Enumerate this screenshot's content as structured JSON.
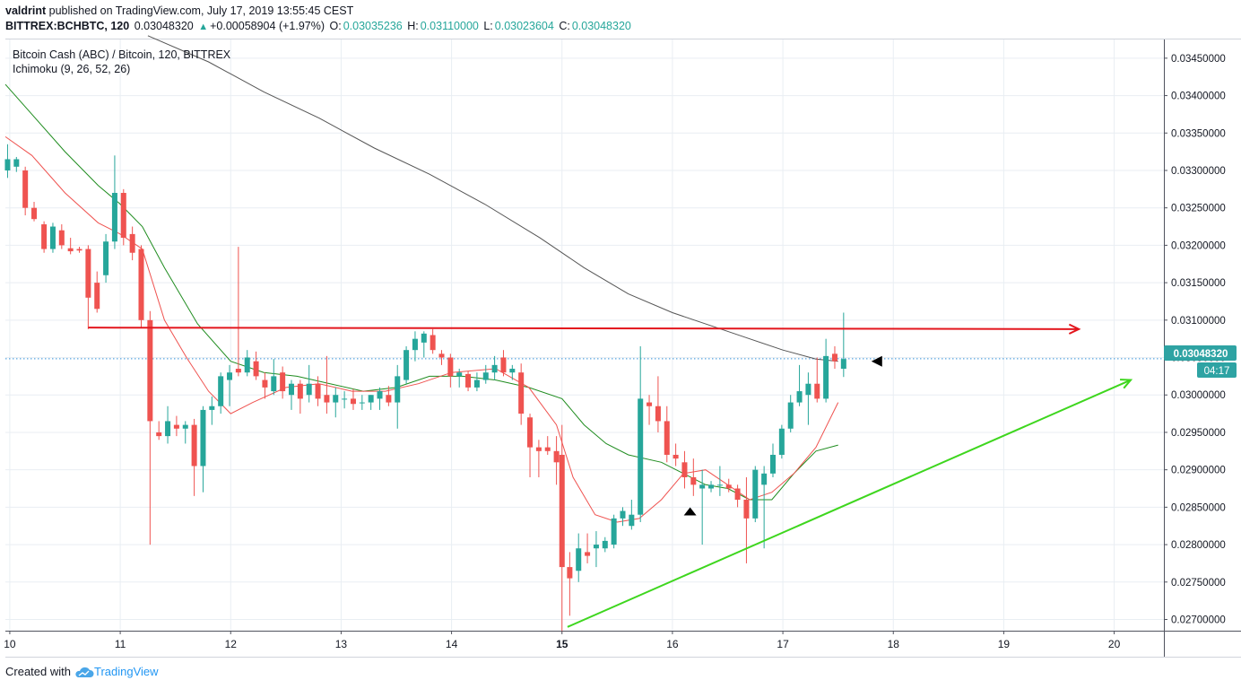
{
  "header": {
    "author": "valdrint",
    "published_text": "published on TradingView.com, July 17, 2019 13:55:45 CEST",
    "symbol": "BITTREX:BCHBTC, 120",
    "last": "0.03048320",
    "change": "+0.00058904 (+1.97%)",
    "o_label": "O:",
    "o_value": "0.03035236",
    "h_label": "H:",
    "h_value": "0.03110000",
    "l_label": "L:",
    "l_value": "0.03023604",
    "c_label": "C:",
    "c_value": "0.03048320"
  },
  "legend": {
    "title": "Bitcoin Cash (ABC) / Bitcoin, 120, BITTREX",
    "indicator": "Ichimoku (9, 26, 52, 26)"
  },
  "footer": {
    "created_with": "Created with",
    "brand": "TradingView"
  },
  "price_label": "0.03048320",
  "time_label": "04:17",
  "colors": {
    "up": "#26a69a",
    "down": "#ef5350",
    "support": "#3ed61e",
    "resistance": "#e3161d",
    "grid": "#e9eef3",
    "price_line": "#2f8fd8"
  },
  "chart_data": {
    "type": "candlestick",
    "x_ticks": [
      "10",
      "11",
      "12",
      "13",
      "14",
      "15",
      "16",
      "17",
      "18",
      "19",
      "20"
    ],
    "y_ticks": [
      "0.02700000",
      "0.02750000",
      "0.02800000",
      "0.02850000",
      "0.02900000",
      "0.02950000",
      "0.03000000",
      "0.03050000",
      "0.03100000",
      "0.03150000",
      "0.03200000",
      "0.03250000",
      "0.03300000",
      "0.03350000",
      "0.03400000",
      "0.03450000"
    ],
    "ylim": [
      0.02685,
      0.03475
    ],
    "xlim": [
      9.96,
      20.45
    ],
    "candles": [
      {
        "t": 9.98,
        "o": 0.033,
        "h": 0.03335,
        "l": 0.0329,
        "c": 0.03315
      },
      {
        "t": 10.06,
        "o": 0.03305,
        "h": 0.03318,
        "l": 0.03298,
        "c": 0.03315
      },
      {
        "t": 10.14,
        "o": 0.033,
        "h": 0.03305,
        "l": 0.0324,
        "c": 0.0325
      },
      {
        "t": 10.22,
        "o": 0.0325,
        "h": 0.03258,
        "l": 0.03232,
        "c": 0.03235
      },
      {
        "t": 10.31,
        "o": 0.03228,
        "h": 0.03232,
        "l": 0.0319,
        "c": 0.03195
      },
      {
        "t": 10.39,
        "o": 0.03195,
        "h": 0.0323,
        "l": 0.0319,
        "c": 0.03225
      },
      {
        "t": 10.47,
        "o": 0.0322,
        "h": 0.03228,
        "l": 0.03195,
        "c": 0.032
      },
      {
        "t": 10.55,
        "o": 0.03196,
        "h": 0.0321,
        "l": 0.03188,
        "c": 0.03192
      },
      {
        "t": 10.63,
        "o": 0.03195,
        "h": 0.03198,
        "l": 0.0319,
        "c": 0.03193
      },
      {
        "t": 10.71,
        "o": 0.03195,
        "h": 0.032,
        "l": 0.03088,
        "c": 0.0313
      },
      {
        "t": 10.79,
        "o": 0.0315,
        "h": 0.03165,
        "l": 0.0311,
        "c": 0.03115
      },
      {
        "t": 10.87,
        "o": 0.0316,
        "h": 0.03215,
        "l": 0.0315,
        "c": 0.03205
      },
      {
        "t": 10.95,
        "o": 0.03205,
        "h": 0.0332,
        "l": 0.03195,
        "c": 0.0327
      },
      {
        "t": 11.03,
        "o": 0.0327,
        "h": 0.03275,
        "l": 0.032,
        "c": 0.0321
      },
      {
        "t": 11.11,
        "o": 0.03215,
        "h": 0.03225,
        "l": 0.0318,
        "c": 0.0319
      },
      {
        "t": 11.19,
        "o": 0.03195,
        "h": 0.032,
        "l": 0.0309,
        "c": 0.031
      },
      {
        "t": 11.27,
        "o": 0.031,
        "h": 0.03112,
        "l": 0.028,
        "c": 0.02965
      },
      {
        "t": 11.35,
        "o": 0.0295,
        "h": 0.02965,
        "l": 0.0294,
        "c": 0.02945
      },
      {
        "t": 11.43,
        "o": 0.02945,
        "h": 0.02985,
        "l": 0.02935,
        "c": 0.02965
      },
      {
        "t": 11.51,
        "o": 0.0296,
        "h": 0.02972,
        "l": 0.02945,
        "c": 0.02955
      },
      {
        "t": 11.59,
        "o": 0.02955,
        "h": 0.02965,
        "l": 0.02935,
        "c": 0.0296
      },
      {
        "t": 11.67,
        "o": 0.0296,
        "h": 0.02968,
        "l": 0.02865,
        "c": 0.02905
      },
      {
        "t": 11.75,
        "o": 0.02905,
        "h": 0.02985,
        "l": 0.0287,
        "c": 0.0298
      },
      {
        "t": 11.83,
        "o": 0.0298,
        "h": 0.02998,
        "l": 0.0296,
        "c": 0.02985
      },
      {
        "t": 11.91,
        "o": 0.02985,
        "h": 0.0303,
        "l": 0.02975,
        "c": 0.03025
      },
      {
        "t": 11.99,
        "o": 0.0302,
        "h": 0.0304,
        "l": 0.02985,
        "c": 0.0303
      },
      {
        "t": 12.07,
        "o": 0.03035,
        "h": 0.03198,
        "l": 0.03025,
        "c": 0.0303
      },
      {
        "t": 12.15,
        "o": 0.0303,
        "h": 0.0306,
        "l": 0.03025,
        "c": 0.0305
      },
      {
        "t": 12.23,
        "o": 0.03045,
        "h": 0.03058,
        "l": 0.0302,
        "c": 0.03025
      },
      {
        "t": 12.31,
        "o": 0.0302,
        "h": 0.0303,
        "l": 0.02995,
        "c": 0.0301
      },
      {
        "t": 12.39,
        "o": 0.03005,
        "h": 0.03048,
        "l": 0.03,
        "c": 0.03025
      },
      {
        "t": 12.47,
        "o": 0.0303,
        "h": 0.03038,
        "l": 0.02995,
        "c": 0.03005
      },
      {
        "t": 12.55,
        "o": 0.03,
        "h": 0.0302,
        "l": 0.0298,
        "c": 0.03015
      },
      {
        "t": 12.63,
        "o": 0.03015,
        "h": 0.0302,
        "l": 0.02975,
        "c": 0.02995
      },
      {
        "t": 12.71,
        "o": 0.03,
        "h": 0.0304,
        "l": 0.0299,
        "c": 0.03015
      },
      {
        "t": 12.79,
        "o": 0.03015,
        "h": 0.03025,
        "l": 0.02985,
        "c": 0.02995
      },
      {
        "t": 12.87,
        "o": 0.03,
        "h": 0.03052,
        "l": 0.02975,
        "c": 0.0299
      },
      {
        "t": 12.95,
        "o": 0.0299,
        "h": 0.0301,
        "l": 0.0297,
        "c": 0.03
      },
      {
        "t": 13.03,
        "o": 0.02995,
        "h": 0.03005,
        "l": 0.02982,
        "c": 0.02995
      },
      {
        "t": 13.11,
        "o": 0.02995,
        "h": 0.03008,
        "l": 0.0298,
        "c": 0.02988
      },
      {
        "t": 13.19,
        "o": 0.0299,
        "h": 0.03,
        "l": 0.0298,
        "c": 0.0299
      },
      {
        "t": 13.27,
        "o": 0.0299,
        "h": 0.03,
        "l": 0.0298,
        "c": 0.03
      },
      {
        "t": 13.35,
        "o": 0.02995,
        "h": 0.0301,
        "l": 0.0298,
        "c": 0.03005
      },
      {
        "t": 13.43,
        "o": 0.03,
        "h": 0.03012,
        "l": 0.02985,
        "c": 0.0299
      },
      {
        "t": 13.51,
        "o": 0.0299,
        "h": 0.0304,
        "l": 0.02955,
        "c": 0.03025
      },
      {
        "t": 13.59,
        "o": 0.0302,
        "h": 0.03065,
        "l": 0.03015,
        "c": 0.0306
      },
      {
        "t": 13.67,
        "o": 0.0306,
        "h": 0.03085,
        "l": 0.03045,
        "c": 0.03075
      },
      {
        "t": 13.75,
        "o": 0.0307,
        "h": 0.03085,
        "l": 0.0305,
        "c": 0.03082
      },
      {
        "t": 13.83,
        "o": 0.0308,
        "h": 0.03088,
        "l": 0.03055,
        "c": 0.0306
      },
      {
        "t": 13.91,
        "o": 0.03055,
        "h": 0.0306,
        "l": 0.0304,
        "c": 0.0305
      },
      {
        "t": 13.99,
        "o": 0.0305,
        "h": 0.03055,
        "l": 0.0301,
        "c": 0.03025
      },
      {
        "t": 14.07,
        "o": 0.03025,
        "h": 0.03035,
        "l": 0.0301,
        "c": 0.0303
      },
      {
        "t": 14.15,
        "o": 0.03028,
        "h": 0.03032,
        "l": 0.03005,
        "c": 0.0301
      },
      {
        "t": 14.23,
        "o": 0.0301,
        "h": 0.0303,
        "l": 0.03005,
        "c": 0.0302
      },
      {
        "t": 14.31,
        "o": 0.0302,
        "h": 0.0304,
        "l": 0.03015,
        "c": 0.0303
      },
      {
        "t": 14.39,
        "o": 0.0303,
        "h": 0.03052,
        "l": 0.0302,
        "c": 0.0304
      },
      {
        "t": 14.47,
        "o": 0.0305,
        "h": 0.0306,
        "l": 0.03025,
        "c": 0.0303
      },
      {
        "t": 14.55,
        "o": 0.0303,
        "h": 0.0304,
        "l": 0.0302,
        "c": 0.03035
      },
      {
        "t": 14.63,
        "o": 0.0303,
        "h": 0.03042,
        "l": 0.0296,
        "c": 0.02975
      },
      {
        "t": 14.71,
        "o": 0.0297,
        "h": 0.02975,
        "l": 0.0289,
        "c": 0.0293
      },
      {
        "t": 14.79,
        "o": 0.0293,
        "h": 0.0294,
        "l": 0.0289,
        "c": 0.02925
      },
      {
        "t": 14.87,
        "o": 0.0293,
        "h": 0.02945,
        "l": 0.0292,
        "c": 0.02925
      },
      {
        "t": 14.95,
        "o": 0.02925,
        "h": 0.02945,
        "l": 0.0288,
        "c": 0.0291
      },
      {
        "t": 15.0,
        "o": 0.0292,
        "h": 0.0296,
        "l": 0.02683,
        "c": 0.0277
      },
      {
        "t": 15.07,
        "o": 0.0277,
        "h": 0.0279,
        "l": 0.02705,
        "c": 0.02755
      },
      {
        "t": 15.15,
        "o": 0.02765,
        "h": 0.02815,
        "l": 0.0275,
        "c": 0.02795
      },
      {
        "t": 15.23,
        "o": 0.0279,
        "h": 0.02815,
        "l": 0.02775,
        "c": 0.02785
      },
      {
        "t": 15.31,
        "o": 0.02795,
        "h": 0.02818,
        "l": 0.0277,
        "c": 0.028
      },
      {
        "t": 15.39,
        "o": 0.02795,
        "h": 0.0281,
        "l": 0.0279,
        "c": 0.02805
      },
      {
        "t": 15.47,
        "o": 0.028,
        "h": 0.0284,
        "l": 0.02795,
        "c": 0.02835
      },
      {
        "t": 15.55,
        "o": 0.02835,
        "h": 0.0285,
        "l": 0.02825,
        "c": 0.02845
      },
      {
        "t": 15.63,
        "o": 0.02825,
        "h": 0.0286,
        "l": 0.0282,
        "c": 0.0284
      },
      {
        "t": 15.71,
        "o": 0.0284,
        "h": 0.03065,
        "l": 0.0283,
        "c": 0.02995
      },
      {
        "t": 15.79,
        "o": 0.0299,
        "h": 0.03,
        "l": 0.0296,
        "c": 0.02985
      },
      {
        "t": 15.87,
        "o": 0.02985,
        "h": 0.03025,
        "l": 0.0295,
        "c": 0.02965
      },
      {
        "t": 15.95,
        "o": 0.02965,
        "h": 0.02985,
        "l": 0.0291,
        "c": 0.0292
      },
      {
        "t": 16.03,
        "o": 0.0292,
        "h": 0.02935,
        "l": 0.02905,
        "c": 0.02915
      },
      {
        "t": 16.11,
        "o": 0.0291,
        "h": 0.02925,
        "l": 0.02875,
        "c": 0.0289
      },
      {
        "t": 16.19,
        "o": 0.0289,
        "h": 0.02915,
        "l": 0.02865,
        "c": 0.0288
      },
      {
        "t": 16.27,
        "o": 0.02875,
        "h": 0.029,
        "l": 0.028,
        "c": 0.0288
      },
      {
        "t": 16.35,
        "o": 0.02875,
        "h": 0.02885,
        "l": 0.0287,
        "c": 0.0288
      },
      {
        "t": 16.43,
        "o": 0.0288,
        "h": 0.02905,
        "l": 0.02865,
        "c": 0.0288
      },
      {
        "t": 16.51,
        "o": 0.0288,
        "h": 0.02888,
        "l": 0.0287,
        "c": 0.02875
      },
      {
        "t": 16.59,
        "o": 0.02875,
        "h": 0.0288,
        "l": 0.0285,
        "c": 0.0286
      },
      {
        "t": 16.67,
        "o": 0.0286,
        "h": 0.0289,
        "l": 0.02775,
        "c": 0.02835
      },
      {
        "t": 16.75,
        "o": 0.02835,
        "h": 0.02905,
        "l": 0.0283,
        "c": 0.029
      },
      {
        "t": 16.83,
        "o": 0.0288,
        "h": 0.02905,
        "l": 0.02795,
        "c": 0.02895
      },
      {
        "t": 16.91,
        "o": 0.02895,
        "h": 0.02935,
        "l": 0.0289,
        "c": 0.0292
      },
      {
        "t": 16.99,
        "o": 0.0292,
        "h": 0.0296,
        "l": 0.02915,
        "c": 0.02955
      },
      {
        "t": 17.07,
        "o": 0.02955,
        "h": 0.03,
        "l": 0.0295,
        "c": 0.0299
      },
      {
        "t": 17.15,
        "o": 0.0299,
        "h": 0.0304,
        "l": 0.02985,
        "c": 0.03005
      },
      {
        "t": 17.23,
        "o": 0.03,
        "h": 0.0303,
        "l": 0.0296,
        "c": 0.03015
      },
      {
        "t": 17.31,
        "o": 0.03015,
        "h": 0.0305,
        "l": 0.0299,
        "c": 0.02995
      },
      {
        "t": 17.39,
        "o": 0.02995,
        "h": 0.03075,
        "l": 0.0299,
        "c": 0.03052
      },
      {
        "t": 17.47,
        "o": 0.03055,
        "h": 0.03065,
        "l": 0.03035,
        "c": 0.03045
      },
      {
        "t": 17.55,
        "o": 0.03035,
        "h": 0.0311,
        "l": 0.03024,
        "c": 0.03048
      }
    ],
    "ma_gray": [
      [
        11.25,
        0.0348
      ],
      [
        11.8,
        0.03445
      ],
      [
        12.3,
        0.03405
      ],
      [
        12.8,
        0.0337
      ],
      [
        13.3,
        0.0333
      ],
      [
        13.8,
        0.03295
      ],
      [
        14.3,
        0.03255
      ],
      [
        14.8,
        0.0321
      ],
      [
        15.2,
        0.0317
      ],
      [
        15.6,
        0.03135
      ],
      [
        16.0,
        0.0311
      ],
      [
        16.4,
        0.0309
      ],
      [
        16.7,
        0.03075
      ],
      [
        17.0,
        0.0306
      ],
      [
        17.3,
        0.03048
      ],
      [
        17.5,
        0.03045
      ]
    ],
    "tenkan": [
      [
        9.96,
        0.03345
      ],
      [
        10.2,
        0.0332
      ],
      [
        10.5,
        0.0327
      ],
      [
        10.8,
        0.0323
      ],
      [
        11.0,
        0.03215
      ],
      [
        11.2,
        0.03195
      ],
      [
        11.4,
        0.031
      ],
      [
        11.6,
        0.0305
      ],
      [
        11.8,
        0.03005
      ],
      [
        12.0,
        0.02975
      ],
      [
        12.2,
        0.0299
      ],
      [
        12.5,
        0.0301
      ],
      [
        12.8,
        0.03015
      ],
      [
        13.1,
        0.03005
      ],
      [
        13.4,
        0.03005
      ],
      [
        13.7,
        0.03015
      ],
      [
        14.0,
        0.0303
      ],
      [
        14.4,
        0.03035
      ],
      [
        14.7,
        0.0301
      ],
      [
        14.95,
        0.0296
      ],
      [
        15.1,
        0.0289
      ],
      [
        15.3,
        0.0284
      ],
      [
        15.5,
        0.0283
      ],
      [
        15.7,
        0.02835
      ],
      [
        15.9,
        0.0286
      ],
      [
        16.1,
        0.02895
      ],
      [
        16.3,
        0.029
      ],
      [
        16.5,
        0.0288
      ],
      [
        16.7,
        0.0286
      ],
      [
        16.9,
        0.0287
      ],
      [
        17.1,
        0.02895
      ],
      [
        17.3,
        0.0293
      ],
      [
        17.5,
        0.0299
      ]
    ],
    "kijun": [
      [
        9.96,
        0.03415
      ],
      [
        10.2,
        0.03375
      ],
      [
        10.5,
        0.03325
      ],
      [
        10.8,
        0.0328
      ],
      [
        11.0,
        0.03255
      ],
      [
        11.2,
        0.03225
      ],
      [
        11.4,
        0.0317
      ],
      [
        11.7,
        0.03095
      ],
      [
        12.0,
        0.03045
      ],
      [
        12.3,
        0.0303
      ],
      [
        12.6,
        0.03025
      ],
      [
        12.9,
        0.03015
      ],
      [
        13.2,
        0.03005
      ],
      [
        13.5,
        0.0301
      ],
      [
        13.8,
        0.03025
      ],
      [
        14.1,
        0.03025
      ],
      [
        14.4,
        0.0302
      ],
      [
        14.7,
        0.0301
      ],
      [
        15.0,
        0.02995
      ],
      [
        15.2,
        0.0296
      ],
      [
        15.4,
        0.02935
      ],
      [
        15.6,
        0.0292
      ],
      [
        15.9,
        0.0291
      ],
      [
        16.1,
        0.02895
      ],
      [
        16.3,
        0.0288
      ],
      [
        16.5,
        0.02875
      ],
      [
        16.7,
        0.0286
      ],
      [
        16.9,
        0.0286
      ],
      [
        17.1,
        0.02895
      ],
      [
        17.3,
        0.02925
      ],
      [
        17.5,
        0.02933
      ]
    ],
    "resistance_line": {
      "x1": 10.71,
      "y1": 0.0309,
      "x2": 19.68,
      "y2": 0.03088
    },
    "support_line": {
      "x1": 15.05,
      "y1": 0.0269,
      "x2": 20.15,
      "y2": 0.0302
    },
    "last_price": 0.0304832,
    "markers": [
      {
        "t": 16.16,
        "p": 0.02845,
        "dir": "up"
      },
      {
        "t": 17.85,
        "p": 0.03045,
        "dir": "left"
      }
    ]
  }
}
